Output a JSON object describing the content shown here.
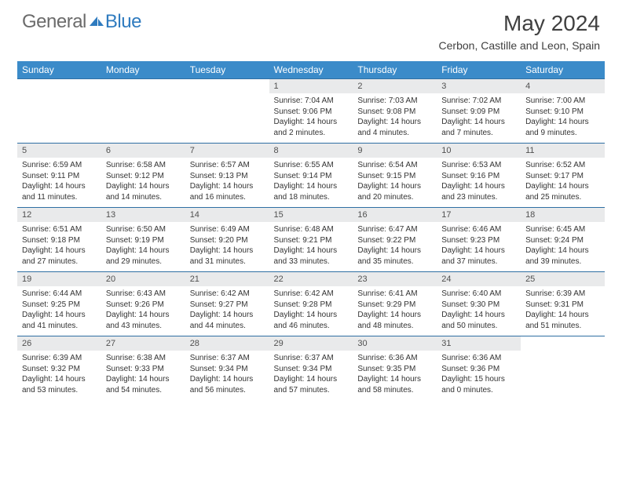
{
  "brand": {
    "part1": "General",
    "part2": "Blue"
  },
  "title": "May 2024",
  "location": "Cerbon, Castille and Leon, Spain",
  "colors": {
    "header_bg": "#3b8bc9",
    "header_text": "#ffffff",
    "daynum_bg": "#e9eaeb",
    "row_border": "#2f6fa3",
    "logo_gray": "#6b6b6b",
    "logo_blue": "#2f7bbf"
  },
  "day_headers": [
    "Sunday",
    "Monday",
    "Tuesday",
    "Wednesday",
    "Thursday",
    "Friday",
    "Saturday"
  ],
  "weeks": [
    [
      null,
      null,
      null,
      null,
      {
        "n": "1",
        "sr": "7:04 AM",
        "ss": "9:06 PM",
        "dl": "14 hours and 2 minutes."
      },
      {
        "n": "2",
        "sr": "7:03 AM",
        "ss": "9:08 PM",
        "dl": "14 hours and 4 minutes."
      },
      {
        "n": "3",
        "sr": "7:02 AM",
        "ss": "9:09 PM",
        "dl": "14 hours and 7 minutes."
      },
      {
        "n": "4",
        "sr": "7:00 AM",
        "ss": "9:10 PM",
        "dl": "14 hours and 9 minutes."
      }
    ],
    [
      {
        "n": "5",
        "sr": "6:59 AM",
        "ss": "9:11 PM",
        "dl": "14 hours and 11 minutes."
      },
      {
        "n": "6",
        "sr": "6:58 AM",
        "ss": "9:12 PM",
        "dl": "14 hours and 14 minutes."
      },
      {
        "n": "7",
        "sr": "6:57 AM",
        "ss": "9:13 PM",
        "dl": "14 hours and 16 minutes."
      },
      {
        "n": "8",
        "sr": "6:55 AM",
        "ss": "9:14 PM",
        "dl": "14 hours and 18 minutes."
      },
      {
        "n": "9",
        "sr": "6:54 AM",
        "ss": "9:15 PM",
        "dl": "14 hours and 20 minutes."
      },
      {
        "n": "10",
        "sr": "6:53 AM",
        "ss": "9:16 PM",
        "dl": "14 hours and 23 minutes."
      },
      {
        "n": "11",
        "sr": "6:52 AM",
        "ss": "9:17 PM",
        "dl": "14 hours and 25 minutes."
      }
    ],
    [
      {
        "n": "12",
        "sr": "6:51 AM",
        "ss": "9:18 PM",
        "dl": "14 hours and 27 minutes."
      },
      {
        "n": "13",
        "sr": "6:50 AM",
        "ss": "9:19 PM",
        "dl": "14 hours and 29 minutes."
      },
      {
        "n": "14",
        "sr": "6:49 AM",
        "ss": "9:20 PM",
        "dl": "14 hours and 31 minutes."
      },
      {
        "n": "15",
        "sr": "6:48 AM",
        "ss": "9:21 PM",
        "dl": "14 hours and 33 minutes."
      },
      {
        "n": "16",
        "sr": "6:47 AM",
        "ss": "9:22 PM",
        "dl": "14 hours and 35 minutes."
      },
      {
        "n": "17",
        "sr": "6:46 AM",
        "ss": "9:23 PM",
        "dl": "14 hours and 37 minutes."
      },
      {
        "n": "18",
        "sr": "6:45 AM",
        "ss": "9:24 PM",
        "dl": "14 hours and 39 minutes."
      }
    ],
    [
      {
        "n": "19",
        "sr": "6:44 AM",
        "ss": "9:25 PM",
        "dl": "14 hours and 41 minutes."
      },
      {
        "n": "20",
        "sr": "6:43 AM",
        "ss": "9:26 PM",
        "dl": "14 hours and 43 minutes."
      },
      {
        "n": "21",
        "sr": "6:42 AM",
        "ss": "9:27 PM",
        "dl": "14 hours and 44 minutes."
      },
      {
        "n": "22",
        "sr": "6:42 AM",
        "ss": "9:28 PM",
        "dl": "14 hours and 46 minutes."
      },
      {
        "n": "23",
        "sr": "6:41 AM",
        "ss": "9:29 PM",
        "dl": "14 hours and 48 minutes."
      },
      {
        "n": "24",
        "sr": "6:40 AM",
        "ss": "9:30 PM",
        "dl": "14 hours and 50 minutes."
      },
      {
        "n": "25",
        "sr": "6:39 AM",
        "ss": "9:31 PM",
        "dl": "14 hours and 51 minutes."
      }
    ],
    [
      {
        "n": "26",
        "sr": "6:39 AM",
        "ss": "9:32 PM",
        "dl": "14 hours and 53 minutes."
      },
      {
        "n": "27",
        "sr": "6:38 AM",
        "ss": "9:33 PM",
        "dl": "14 hours and 54 minutes."
      },
      {
        "n": "28",
        "sr": "6:37 AM",
        "ss": "9:34 PM",
        "dl": "14 hours and 56 minutes."
      },
      {
        "n": "29",
        "sr": "6:37 AM",
        "ss": "9:34 PM",
        "dl": "14 hours and 57 minutes."
      },
      {
        "n": "30",
        "sr": "6:36 AM",
        "ss": "9:35 PM",
        "dl": "14 hours and 58 minutes."
      },
      {
        "n": "31",
        "sr": "6:36 AM",
        "ss": "9:36 PM",
        "dl": "15 hours and 0 minutes."
      },
      null
    ]
  ],
  "labels": {
    "sunrise": "Sunrise:",
    "sunset": "Sunset:",
    "daylight": "Daylight:"
  }
}
